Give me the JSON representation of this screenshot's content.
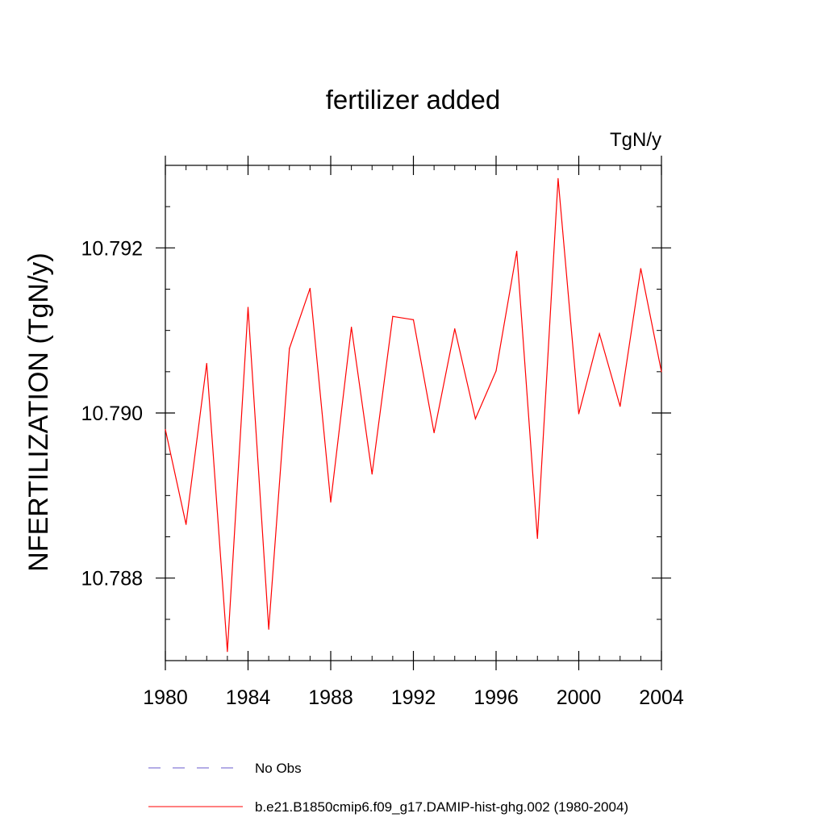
{
  "chart_data": {
    "type": "line",
    "title": "fertilizer added",
    "units_label": "TgN/y",
    "xlabel": "",
    "ylabel": "NFERTILIZATION  (TgN/y)",
    "xlim": [
      1980,
      2004
    ],
    "ylim": [
      10.787,
      10.793
    ],
    "x_ticks": [
      1980,
      1984,
      1988,
      1992,
      1996,
      2000,
      2004
    ],
    "x_tick_labels": [
      "1980",
      "1984",
      "1988",
      "1992",
      "1996",
      "2000",
      "2004"
    ],
    "y_ticks": [
      10.788,
      10.79,
      10.792
    ],
    "y_tick_labels": [
      "10.788",
      "10.790",
      "10.792"
    ],
    "x_minor_step": 1,
    "y_minor_step": 0.0005,
    "grid": false,
    "legend_position": "bottom",
    "series": [
      {
        "name": "b.e21.B1850cmip6.f09_g17.DAMIP-hist-ghg.002 (1980-2004)",
        "color": "#ff0000",
        "dash": "solid",
        "x": [
          1980,
          1981,
          1982,
          1983,
          1984,
          1985,
          1986,
          1987,
          1988,
          1989,
          1990,
          1991,
          1992,
          1993,
          1994,
          1995,
          1996,
          1997,
          1998,
          1999,
          2000,
          2001,
          2002,
          2003,
          2004
        ],
        "values": [
          10.7898,
          10.78865,
          10.7906,
          10.78711,
          10.79128,
          10.78738,
          10.79078,
          10.79151,
          10.78892,
          10.79104,
          10.78926,
          10.79117,
          10.79113,
          10.78976,
          10.79102,
          10.78993,
          10.79051,
          10.79196,
          10.78848,
          10.79284,
          10.78999,
          10.79096,
          10.79008,
          10.79175,
          10.7905
        ]
      }
    ],
    "legend_entries": [
      {
        "label": "No Obs",
        "color": "#6a5acd",
        "dash": "dashed"
      },
      {
        "label": "b.e21.B1850cmip6.f09_g17.DAMIP-hist-ghg.002 (1980-2004)",
        "color": "#ff0000",
        "dash": "solid"
      }
    ]
  }
}
